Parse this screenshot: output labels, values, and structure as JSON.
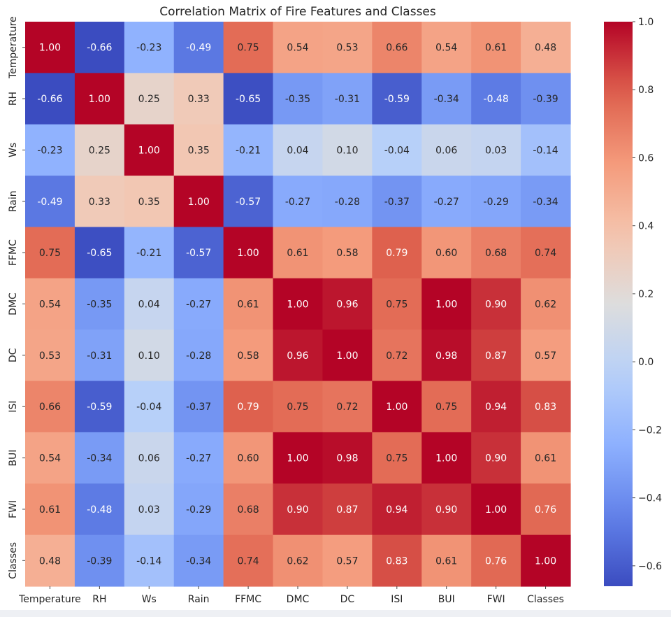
{
  "chart_data": {
    "type": "heatmap",
    "title": "Correlation Matrix of Fire Features and Classes",
    "xlabel": "",
    "ylabel": "",
    "labels": [
      "Temperature",
      "RH",
      "Ws",
      "Rain",
      "FFMC",
      "DMC",
      "DC",
      "ISI",
      "BUI",
      "FWI",
      "Classes"
    ],
    "matrix": [
      [
        1.0,
        -0.66,
        -0.23,
        -0.49,
        0.75,
        0.54,
        0.53,
        0.66,
        0.54,
        0.61,
        0.48
      ],
      [
        -0.66,
        1.0,
        0.25,
        0.33,
        -0.65,
        -0.35,
        -0.31,
        -0.59,
        -0.34,
        -0.48,
        -0.39
      ],
      [
        -0.23,
        0.25,
        1.0,
        0.35,
        -0.21,
        0.04,
        0.1,
        -0.04,
        0.06,
        0.03,
        -0.14
      ],
      [
        -0.49,
        0.33,
        0.35,
        1.0,
        -0.57,
        -0.27,
        -0.28,
        -0.37,
        -0.27,
        -0.29,
        -0.34
      ],
      [
        0.75,
        -0.65,
        -0.21,
        -0.57,
        1.0,
        0.61,
        0.58,
        0.79,
        0.6,
        0.68,
        0.74
      ],
      [
        0.54,
        -0.35,
        0.04,
        -0.27,
        0.61,
        1.0,
        0.96,
        0.75,
        1.0,
        0.9,
        0.62
      ],
      [
        0.53,
        -0.31,
        0.1,
        -0.28,
        0.58,
        0.96,
        1.0,
        0.72,
        0.98,
        0.87,
        0.57
      ],
      [
        0.66,
        -0.59,
        -0.04,
        -0.37,
        0.79,
        0.75,
        0.72,
        1.0,
        0.75,
        0.94,
        0.83
      ],
      [
        0.54,
        -0.34,
        0.06,
        -0.27,
        0.6,
        1.0,
        0.98,
        0.75,
        1.0,
        0.9,
        0.61
      ],
      [
        0.61,
        -0.48,
        0.03,
        -0.29,
        0.68,
        0.9,
        0.87,
        0.94,
        0.9,
        1.0,
        0.76
      ],
      [
        0.48,
        -0.39,
        -0.14,
        -0.34,
        0.74,
        0.62,
        0.57,
        0.83,
        0.61,
        0.76,
        1.0
      ]
    ],
    "colormap": "coolwarm",
    "value_range": [
      -0.66,
      1.0
    ],
    "annotation_format": "0.00",
    "colorbar": {
      "ticks": [
        1.0,
        0.8,
        0.6,
        0.4,
        0.2,
        0.0,
        -0.2,
        -0.4,
        -0.6
      ],
      "tick_labels": [
        "1.0",
        "0.8",
        "0.6",
        "0.4",
        "0.2",
        "0.0",
        "−0.2",
        "−0.4",
        "−0.6"
      ],
      "placement": "right"
    },
    "grid": false
  },
  "colors": {
    "low": "#3b4cc0",
    "mid": "#dddddd",
    "high": "#b40426",
    "text_dark": "#262626",
    "text_light": "#ffffff"
  }
}
